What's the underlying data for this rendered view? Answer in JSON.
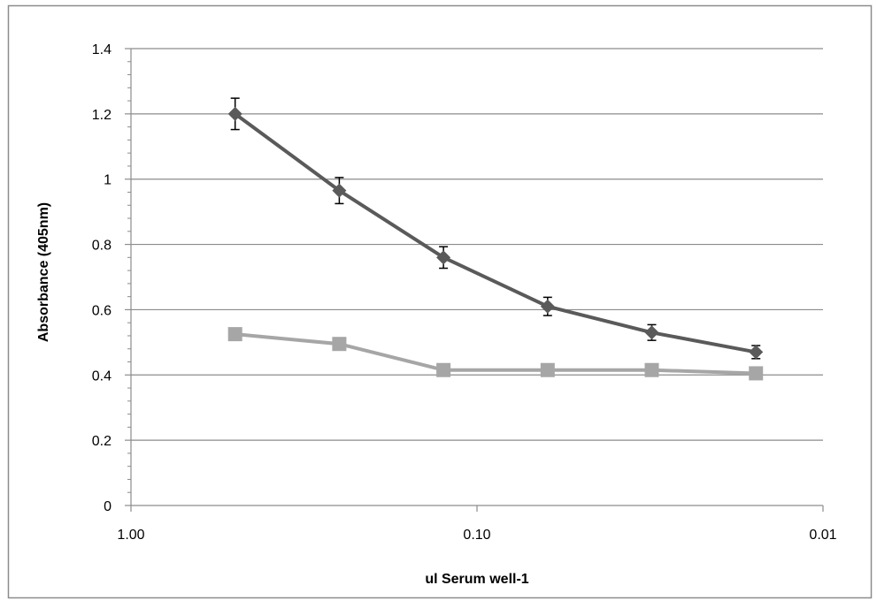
{
  "chart_data": {
    "type": "line",
    "title": "",
    "xlabel": "ul Serum well-1",
    "ylabel": "Absorbance (405nm)",
    "x_scale": "log",
    "x_reversed": true,
    "xlim": [
      1.0,
      0.01
    ],
    "ylim": [
      0,
      1.4
    ],
    "x_ticks": [
      1.0,
      0.1,
      0.01
    ],
    "x_tick_labels": [
      "1.00",
      "0.10",
      "0.01"
    ],
    "y_ticks": [
      0,
      0.2,
      0.4,
      0.6,
      0.8,
      1.0,
      1.2,
      1.4
    ],
    "y_tick_labels": [
      "0",
      "0.2",
      "0.4",
      "0.6",
      "0.8",
      "1",
      "1.2",
      "1.4"
    ],
    "grid": "horizontal",
    "legend": "none",
    "x": [
      0.5,
      0.25,
      0.125,
      0.0625,
      0.03125,
      0.015625
    ],
    "series": [
      {
        "marker": "diamond",
        "color": "#5a5a5a",
        "values": [
          1.2,
          0.965,
          0.76,
          0.61,
          0.53,
          0.47
        ],
        "error": [
          0.048,
          0.04,
          0.033,
          0.028,
          0.024,
          0.02
        ]
      },
      {
        "marker": "square",
        "color": "#a6a6a6",
        "values": [
          0.525,
          0.495,
          0.415,
          0.415,
          0.415,
          0.405
        ]
      }
    ]
  }
}
